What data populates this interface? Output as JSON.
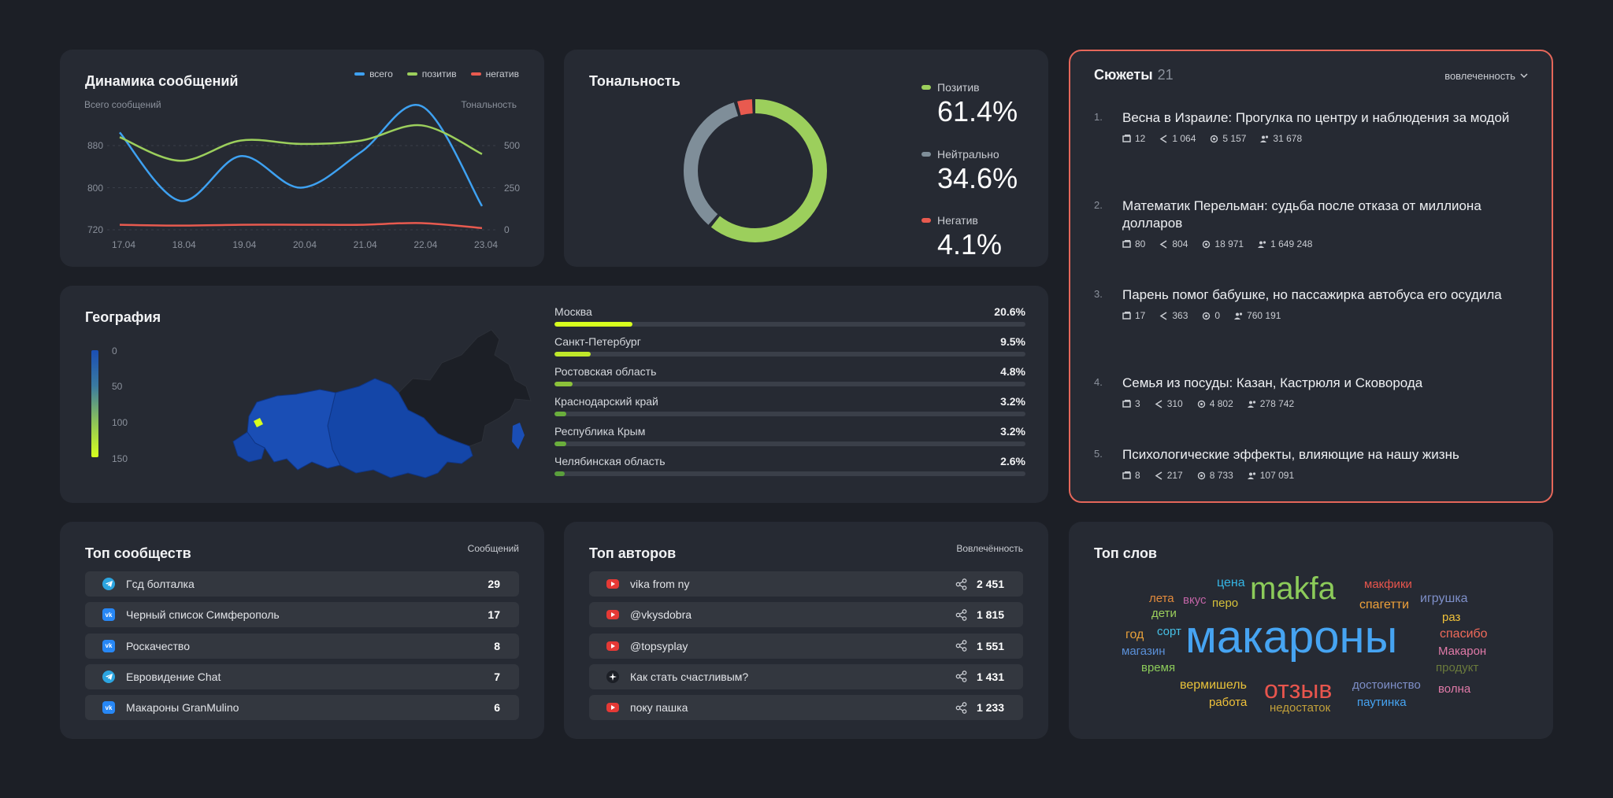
{
  "dynamics": {
    "title": "Динамика сообщений",
    "legend": [
      {
        "label": "всего",
        "color": "#3ea1f1"
      },
      {
        "label": "позитив",
        "color": "#9ccf5c"
      },
      {
        "label": "негатив",
        "color": "#e85a4f"
      }
    ],
    "left_caption": "Всего сообщений",
    "right_caption": "Тональность",
    "chart_data": {
      "type": "line",
      "x": [
        "17.04",
        "18.04",
        "19.04",
        "20.04",
        "21.04",
        "22.04",
        "23.04"
      ],
      "left_ticks": [
        "880",
        "800",
        "720"
      ],
      "right_ticks": [
        "500",
        "250",
        "0"
      ],
      "ylim_left": [
        720,
        880
      ],
      "ylim_right": [
        0,
        500
      ],
      "series": [
        {
          "name": "всего",
          "axis": "left",
          "color": "#3ea1f1",
          "values": [
            905,
            775,
            860,
            800,
            868,
            955,
            765
          ]
        },
        {
          "name": "позитив",
          "axis": "right",
          "color": "#9ccf5c",
          "values": [
            550,
            410,
            530,
            510,
            530,
            620,
            450
          ]
        },
        {
          "name": "негатив",
          "axis": "right",
          "color": "#e85a4f",
          "values": [
            30,
            25,
            30,
            30,
            30,
            40,
            10
          ]
        }
      ]
    }
  },
  "tonality": {
    "title": "Тональность",
    "items": [
      {
        "label": "Позитив",
        "value": "61.4%",
        "color": "#9ccf5c"
      },
      {
        "label": "Нейтрально",
        "value": "34.6%",
        "color": "#7f8e99"
      },
      {
        "label": "Негатив",
        "value": "4.1%",
        "color": "#e85a4f"
      }
    ],
    "chart_data": {
      "type": "pie",
      "categories": [
        "Позитив",
        "Нейтрально",
        "Негатив"
      ],
      "values": [
        61.4,
        34.6,
        4.1
      ],
      "colors": [
        "#9ccf5c",
        "#7f8e99",
        "#e85a4f"
      ]
    }
  },
  "plots": {
    "title": "Сюжеты",
    "count": "21",
    "sort_label": "вовлеченность",
    "items": [
      {
        "num": "1.",
        "title": "Весна в Израиле: Прогулка по центру и наблюдения за модой",
        "posts": "12",
        "shares": "1 064",
        "views": "5 157",
        "reach": "31 678"
      },
      {
        "num": "2.",
        "title": "Математик Перельман: судьба после отказа от миллиона долларов",
        "posts": "80",
        "shares": "804",
        "views": "18 971",
        "reach": "1 649 248"
      },
      {
        "num": "3.",
        "title": "Парень помог бабушке, но пассажирка автобуса его осудила",
        "posts": "17",
        "shares": "363",
        "views": "0",
        "reach": "760 191"
      },
      {
        "num": "4.",
        "title": "Семья из посуды: Казан, Кастрюля и Сковорода",
        "posts": "3",
        "shares": "310",
        "views": "4 802",
        "reach": "278 742"
      },
      {
        "num": "5.",
        "title": "Психологические эффекты, влияющие на нашу жизнь",
        "posts": "8",
        "shares": "217",
        "views": "8 733",
        "reach": "107 091"
      }
    ]
  },
  "geography": {
    "title": "География",
    "scale": [
      "0",
      "50",
      "100",
      "150"
    ],
    "regions": [
      {
        "name": "Москва",
        "pct": "20.6%",
        "share": 0.206,
        "color": "#d7ff1e"
      },
      {
        "name": "Санкт-Петербург",
        "pct": "9.5%",
        "share": 0.095,
        "color": "#bfe82a"
      },
      {
        "name": "Ростовская область",
        "pct": "4.8%",
        "share": 0.048,
        "color": "#8cc23a"
      },
      {
        "name": "Краснодарский край",
        "pct": "3.2%",
        "share": 0.032,
        "color": "#6aae3c"
      },
      {
        "name": "Республика Крым",
        "pct": "3.2%",
        "share": 0.032,
        "color": "#6aae3c"
      },
      {
        "name": "Челябинская область",
        "pct": "2.6%",
        "share": 0.026,
        "color": "#5a9f3c"
      }
    ]
  },
  "communities": {
    "title": "Топ сообществ",
    "caption": "Сообщений",
    "rows": [
      {
        "source": "telegram-icon",
        "label": "Гсд болталка",
        "value": "29"
      },
      {
        "source": "vk-icon",
        "label": "Черный список Симферополь",
        "value": "17"
      },
      {
        "source": "vk-icon",
        "label": "Роскачество",
        "value": "8"
      },
      {
        "source": "telegram-icon",
        "label": "Евровидение Chat",
        "value": "7"
      },
      {
        "source": "vk-icon",
        "label": "Макароны GranMulino",
        "value": "6"
      }
    ]
  },
  "authors": {
    "title": "Топ авторов",
    "caption": "Вовлечённость",
    "rows": [
      {
        "source": "youtube-icon",
        "label": "vika from ny",
        "value": "2 451"
      },
      {
        "source": "youtube-icon",
        "label": "@vkysdobra",
        "value": "1 815"
      },
      {
        "source": "youtube-icon",
        "label": "@topsyplay",
        "value": "1 551"
      },
      {
        "source": "sparkle-icon",
        "label": "Как стать счастливым?",
        "value": "1 431"
      },
      {
        "source": "youtube-icon",
        "label": "поку пашка",
        "value": "1 233"
      }
    ]
  },
  "words": {
    "title": "Топ слов",
    "items": [
      {
        "text": "макароны",
        "color": "#46a4f2"
      },
      {
        "text": "makfa",
        "color": "#8ccb5a"
      },
      {
        "text": "отзыв",
        "color": "#e8554d"
      },
      {
        "text": "цена",
        "color": "#35b6e6"
      },
      {
        "text": "макфики",
        "color": "#e8554d"
      },
      {
        "text": "лета",
        "color": "#e38b3c"
      },
      {
        "text": "вкус",
        "color": "#c264a6"
      },
      {
        "text": "перо",
        "color": "#d6c13a"
      },
      {
        "text": "спагетти",
        "color": "#f0a23a"
      },
      {
        "text": "игрушка",
        "color": "#7e8fc8"
      },
      {
        "text": "дети",
        "color": "#9ccf5c"
      },
      {
        "text": "раз",
        "color": "#f0c23a"
      },
      {
        "text": "год",
        "color": "#e8a03a"
      },
      {
        "text": "сорт",
        "color": "#46c0e6"
      },
      {
        "text": "спасибо",
        "color": "#f06a5a"
      },
      {
        "text": "магазин",
        "color": "#5a8fd6"
      },
      {
        "text": "Макарон",
        "color": "#e07aa8"
      },
      {
        "text": "время",
        "color": "#8ccb5a"
      },
      {
        "text": "продукт",
        "color": "#6a7a3c"
      },
      {
        "text": "вермишель",
        "color": "#e8c23a"
      },
      {
        "text": "достоинство",
        "color": "#7e8fc8"
      },
      {
        "text": "волна",
        "color": "#e07aa8"
      },
      {
        "text": "работа",
        "color": "#f0c23a"
      },
      {
        "text": "паутинка",
        "color": "#46a4f2"
      },
      {
        "text": "недостаток",
        "color": "#c2a03a"
      }
    ]
  }
}
